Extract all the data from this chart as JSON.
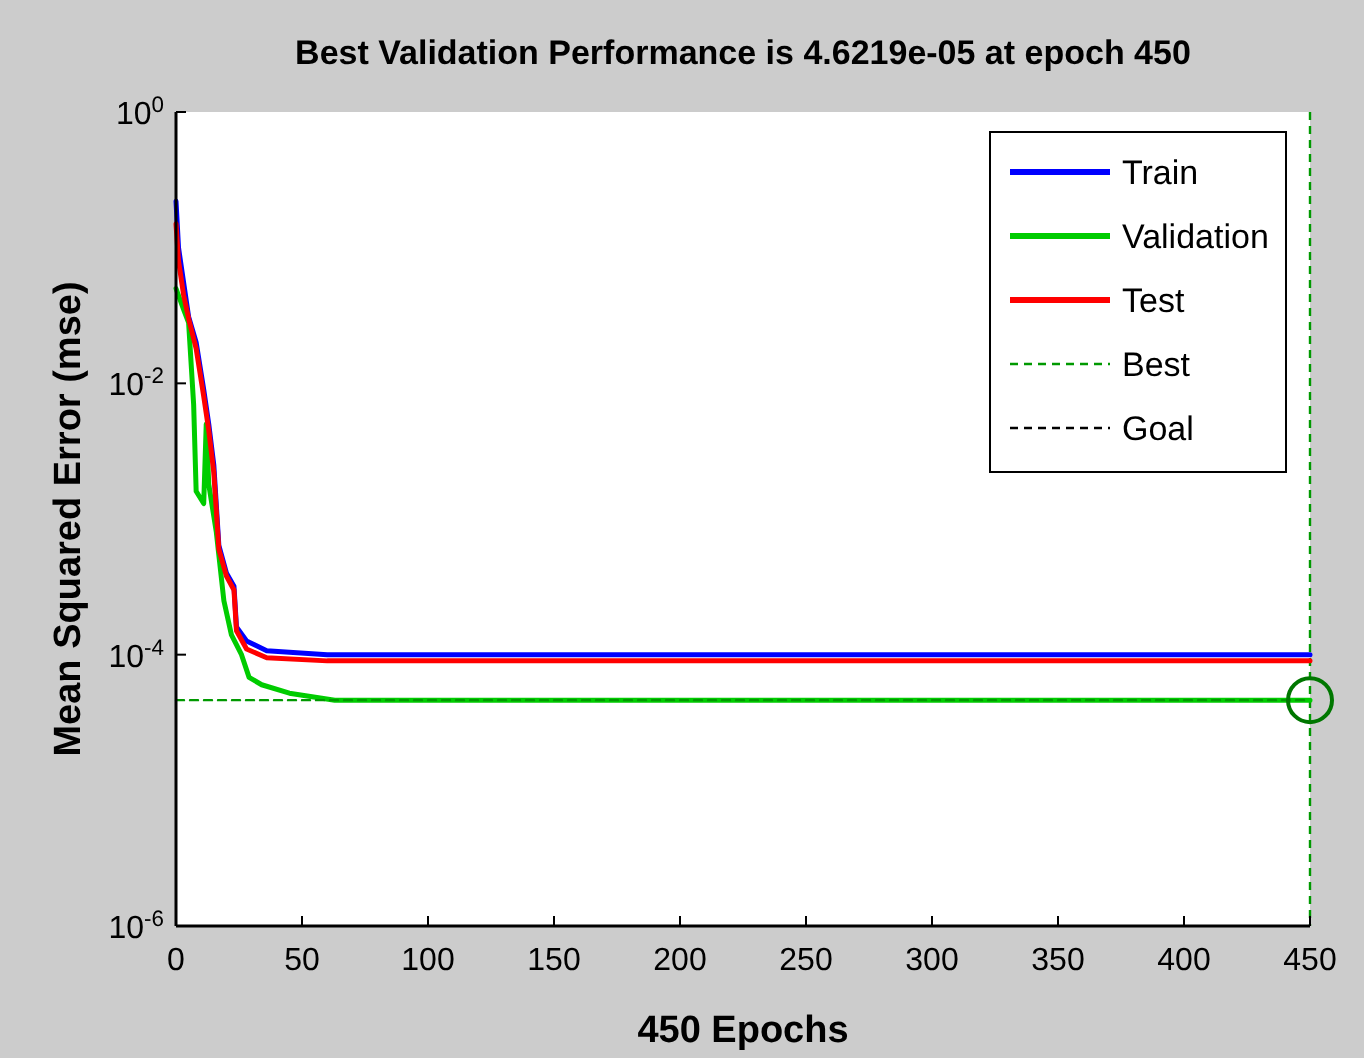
{
  "chart_data": {
    "type": "line",
    "title": "Best Validation Performance is 4.6219e-05 at epoch 450",
    "xlabel": "450 Epochs",
    "ylabel": "Mean Squared Error  (mse)",
    "log": "y",
    "xlim": [
      0,
      450
    ],
    "xticks": [
      0,
      50,
      100,
      150,
      200,
      250,
      300,
      350,
      400,
      450
    ],
    "ylim": [
      1e-06,
      1
    ],
    "yticks": [
      {
        "value": 1,
        "label": "10$^{0}$"
      },
      {
        "value": 0.01,
        "label": "10$^{-2}$"
      },
      {
        "value": 0.0001,
        "label": "10$^{-4}$"
      },
      {
        "value": 1e-06,
        "label": "10$^{-6}$"
      }
    ],
    "legend": "top right",
    "line_style": "solid",
    "ref_lines": [
      {
        "axis": "x",
        "value": 450,
        "color": "#009900",
        "line_style": "dashed"
      }
    ],
    "series": [
      {
        "name": "Train",
        "color": "#0000ff",
        "x": [
          0,
          1,
          3,
          5,
          8,
          11,
          13,
          15,
          17,
          20,
          23,
          24,
          28,
          36,
          60,
          450
        ],
        "values": [
          0.22,
          0.1,
          null,
          0.031,
          0.02,
          0.009,
          0.005,
          0.0025,
          0.00064,
          0.0004,
          0.00032,
          0.00016,
          0.000126,
          0.000107,
          0.0001,
          0.0001
        ]
      },
      {
        "name": "Validation",
        "color": "#00cc00",
        "x": [
          0,
          3,
          5,
          7,
          8,
          11,
          12,
          13,
          16,
          19,
          22,
          26,
          29,
          34,
          45,
          63,
          450
        ],
        "values": [
          0.05,
          0.035,
          0.028,
          0.007,
          0.0016,
          0.0013,
          0.005,
          0.0018,
          0.0008,
          0.00025,
          0.00014,
          0.0001,
          6.8e-05,
          6e-05,
          5.2e-05,
          4.62e-05,
          4.62e-05
        ]
      },
      {
        "name": "Test",
        "color": "#ff0000",
        "x": [
          0,
          1,
          3,
          5,
          8,
          11,
          13,
          15,
          17,
          20,
          23,
          24,
          28,
          36,
          60,
          450
        ],
        "values": [
          0.15,
          0.08,
          0.045,
          0.03,
          0.018,
          0.008,
          0.0045,
          0.0022,
          0.0006,
          0.00038,
          0.0003,
          0.00015,
          0.00011,
          9.5e-05,
          9e-05,
          9e-05
        ]
      },
      {
        "name": "Best",
        "color": "#009900",
        "line_style": "dashed",
        "x": [
          0,
          450
        ],
        "values": [
          4.6219e-05,
          4.6219e-05
        ]
      },
      {
        "name": "Goal",
        "color": "#000000",
        "line_style": "dashed"
      },
      {
        "type": "scatter",
        "marker": "circle",
        "color": "#007700",
        "x": [
          450
        ],
        "values": [
          4.6219e-05
        ]
      }
    ]
  }
}
